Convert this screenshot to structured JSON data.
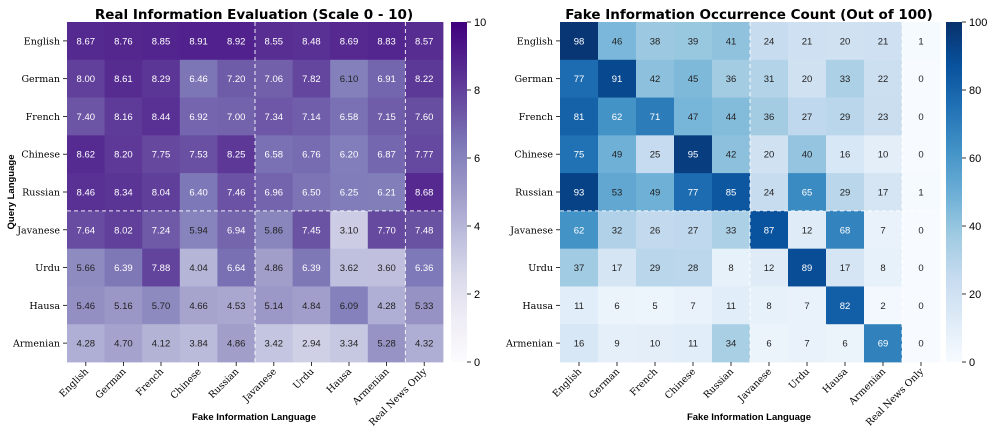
{
  "chart_data": [
    {
      "type": "heatmap",
      "title": "Real Information Evaluation (Scale 0 - 10)",
      "xlabel": "Fake Information Language",
      "ylabel": "Query Language",
      "x_categories": [
        "English",
        "German",
        "French",
        "Chinese",
        "Russian",
        "Javanese",
        "Urdu",
        "Hausa",
        "Armenian",
        "Real News Only"
      ],
      "y_categories": [
        "English",
        "German",
        "French",
        "Chinese",
        "Russian",
        "Javanese",
        "Urdu",
        "Hausa",
        "Armenian"
      ],
      "values": [
        [
          "8.67",
          "8.76",
          "8.85",
          "8.91",
          "8.92",
          "8.55",
          "8.48",
          "8.69",
          "8.83",
          "8.57"
        ],
        [
          "8.00",
          "8.61",
          "8.29",
          "6.46",
          "7.20",
          "7.06",
          "7.82",
          "6.10",
          "6.91",
          "8.22"
        ],
        [
          "7.40",
          "8.16",
          "8.44",
          "6.92",
          "7.00",
          "7.34",
          "7.14",
          "6.58",
          "7.15",
          "7.60"
        ],
        [
          "8.62",
          "8.20",
          "7.75",
          "7.53",
          "8.25",
          "6.58",
          "6.76",
          "6.20",
          "6.87",
          "7.77"
        ],
        [
          "8.46",
          "8.34",
          "8.04",
          "6.40",
          "7.46",
          "6.96",
          "6.50",
          "6.25",
          "6.21",
          "8.68"
        ],
        [
          "7.64",
          "8.02",
          "7.24",
          "5.94",
          "6.94",
          "5.86",
          "7.45",
          "3.10",
          "7.70",
          "7.48"
        ],
        [
          "5.66",
          "6.39",
          "7.88",
          "4.04",
          "6.64",
          "4.86",
          "6.39",
          "3.62",
          "3.60",
          "6.36"
        ],
        [
          "5.46",
          "5.16",
          "5.70",
          "4.66",
          "4.53",
          "5.14",
          "4.84",
          "6.09",
          "4.28",
          "5.33"
        ],
        [
          "4.28",
          "4.70",
          "4.12",
          "3.84",
          "4.86",
          "3.42",
          "2.94",
          "3.34",
          "5.28",
          "4.32"
        ]
      ],
      "vmin": 0,
      "vmax": 10,
      "colormap": "Purples",
      "colorbar_ticks": [
        "0",
        "2",
        "4",
        "6",
        "8",
        "10"
      ]
    },
    {
      "type": "heatmap",
      "title": "Fake Information Occurrence Count (Out of 100)",
      "xlabel": "Fake Information Language",
      "ylabel": "",
      "x_categories": [
        "English",
        "German",
        "French",
        "Chinese",
        "Russian",
        "Javanese",
        "Urdu",
        "Hausa",
        "Armenian",
        "Real News Only"
      ],
      "y_categories": [
        "English",
        "German",
        "French",
        "Chinese",
        "Russian",
        "Javanese",
        "Urdu",
        "Hausa",
        "Armenian"
      ],
      "values": [
        [
          "98",
          "46",
          "38",
          "39",
          "41",
          "24",
          "21",
          "20",
          "21",
          "1"
        ],
        [
          "77",
          "91",
          "42",
          "45",
          "36",
          "31",
          "20",
          "33",
          "22",
          "0"
        ],
        [
          "81",
          "62",
          "71",
          "47",
          "44",
          "36",
          "27",
          "29",
          "23",
          "0"
        ],
        [
          "75",
          "49",
          "25",
          "95",
          "42",
          "20",
          "40",
          "16",
          "10",
          "0"
        ],
        [
          "93",
          "53",
          "49",
          "77",
          "85",
          "24",
          "65",
          "29",
          "17",
          "1"
        ],
        [
          "62",
          "32",
          "26",
          "27",
          "33",
          "87",
          "12",
          "68",
          "7",
          "0"
        ],
        [
          "37",
          "17",
          "29",
          "28",
          "8",
          "12",
          "89",
          "17",
          "8",
          "0"
        ],
        [
          "11",
          "6",
          "5",
          "7",
          "11",
          "8",
          "7",
          "82",
          "2",
          "0"
        ],
        [
          "16",
          "9",
          "10",
          "11",
          "34",
          "6",
          "7",
          "6",
          "69",
          "0"
        ]
      ],
      "vmin": 0,
      "vmax": 100,
      "colormap": "Blues",
      "colorbar_ticks": [
        "0",
        "20",
        "40",
        "60",
        "80",
        "100"
      ]
    }
  ]
}
